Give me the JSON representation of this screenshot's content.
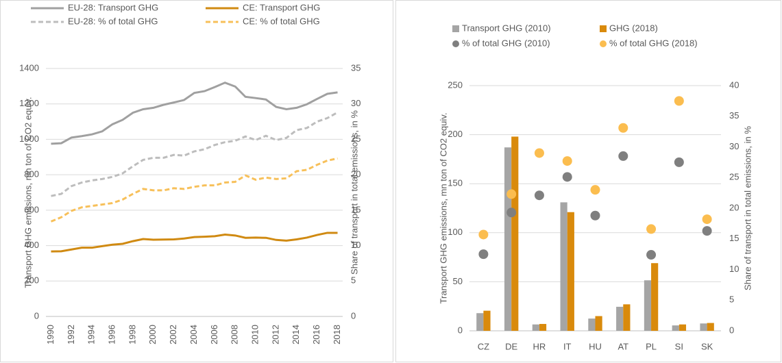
{
  "chart_data": [
    {
      "type": "line",
      "categories": [
        1990,
        null,
        1992,
        null,
        1994,
        null,
        1996,
        null,
        1998,
        null,
        2000,
        null,
        2002,
        null,
        2004,
        null,
        2006,
        null,
        2008,
        null,
        2010,
        null,
        2012,
        null,
        2014,
        null,
        2016,
        null,
        2018
      ],
      "ylabel": "Transport GHG emissions, mn ton of CO2 equiv.",
      "y2label": "Share of transport in total emissions, in %",
      "ylim": [
        0,
        1400
      ],
      "yticks": [
        0,
        200,
        400,
        600,
        800,
        1000,
        1200,
        1400
      ],
      "y2lim": [
        0,
        35
      ],
      "y2ticks": [
        0,
        5,
        10,
        15,
        20,
        25,
        30,
        35
      ],
      "grid": true,
      "series": [
        {
          "name": "EU-28: Transport GHG",
          "color": "#a0a0a0",
          "dashed": false,
          "values": [
            975,
            978,
            1010,
            1018,
            1028,
            1045,
            1085,
            1110,
            1150,
            1170,
            1178,
            1195,
            1208,
            1222,
            1262,
            1272,
            1295,
            1320,
            1298,
            1240,
            1233,
            1225,
            1183,
            1170,
            1178,
            1198,
            1228,
            1257,
            1265
          ]
        },
        {
          "name": "CE: Transport GHG",
          "color": "#d08a12",
          "dashed": false,
          "values": [
            367,
            368,
            378,
            388,
            388,
            397,
            405,
            410,
            425,
            437,
            433,
            434,
            435,
            440,
            448,
            450,
            453,
            462,
            457,
            444,
            445,
            444,
            432,
            428,
            435,
            445,
            460,
            472,
            472
          ]
        },
        {
          "name": "EU-28: % of total GHG",
          "color": "#bdbdbd",
          "dashed": true,
          "axis": "y2",
          "values": [
            17,
            17.3,
            18.4,
            18.9,
            19.2,
            19.4,
            19.7,
            20.2,
            21.2,
            22.1,
            22.4,
            22.4,
            22.8,
            22.7,
            23.3,
            23.6,
            24.2,
            24.6,
            24.8,
            25.4,
            24.9,
            25.5,
            24.9,
            25.2,
            26.3,
            26.6,
            27.5,
            28.0,
            28.8
          ]
        },
        {
          "name": "CE: % of total GHG",
          "color": "#f7c05a",
          "dashed": true,
          "axis": "y2",
          "values": [
            13.4,
            14.0,
            14.9,
            15.4,
            15.6,
            15.8,
            16.0,
            16.5,
            17.3,
            18.0,
            17.8,
            17.8,
            18.1,
            18.0,
            18.3,
            18.5,
            18.5,
            18.9,
            19.0,
            19.9,
            19.3,
            19.6,
            19.4,
            19.5,
            20.5,
            20.7,
            21.4,
            22.0,
            22.3
          ]
        }
      ]
    },
    {
      "type": "bar",
      "categories": [
        "CZ",
        "DE",
        "HR",
        "IT",
        "HU",
        "AT",
        "PL",
        "SI",
        "SK"
      ],
      "ylabel": "Transport GHG emissions, mn ton of CO2 equiv.",
      "y2label": "Share of transport in total emissions, in %",
      "ylim": [
        0,
        250
      ],
      "yticks": [
        0,
        50,
        100,
        150,
        200,
        250
      ],
      "y2lim": [
        0,
        40
      ],
      "y2ticks": [
        0,
        5,
        10,
        15,
        20,
        25,
        30,
        35,
        40
      ],
      "grid": true,
      "series": [
        {
          "name": "Transport GHG (2010)",
          "color": "#a5a5a5",
          "type": "bar",
          "values": [
            18,
            187,
            6.5,
            131,
            12.5,
            24.5,
            51.5,
            5.5,
            7.5
          ]
        },
        {
          "name": "GHG (2018)",
          "color": "#d98a0c",
          "type": "bar",
          "values": [
            20.5,
            198,
            7,
            121,
            15,
            27,
            69,
            6.5,
            8
          ]
        },
        {
          "name": "% of total GHG (2010)",
          "color": "#7f7f7f",
          "type": "scatter",
          "axis": "y2",
          "values": [
            12.5,
            19.3,
            22.1,
            25.1,
            18.8,
            28.5,
            12.4,
            27.5,
            16.3
          ]
        },
        {
          "name": "% of total GHG (2018)",
          "color": "#fbbd4f",
          "type": "scatter",
          "axis": "y2",
          "values": [
            15.7,
            22.3,
            29.0,
            27.7,
            23.0,
            33.1,
            16.6,
            37.5,
            18.2
          ]
        }
      ]
    }
  ]
}
